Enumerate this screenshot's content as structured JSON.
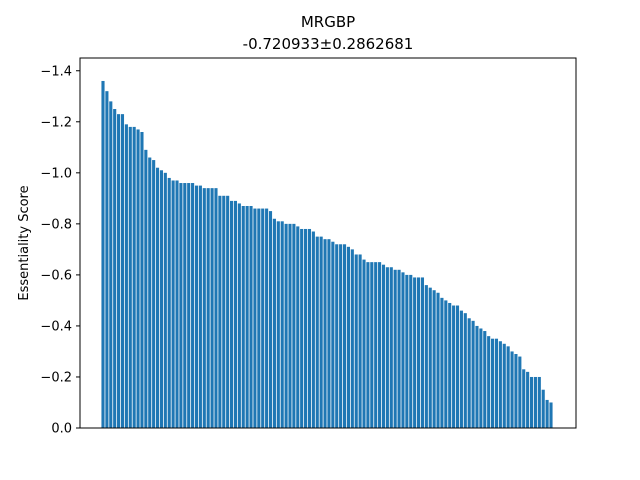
{
  "chart_data": {
    "type": "bar",
    "title": "MRGBP",
    "subtitle": "-0.720933±0.2862681",
    "xlabel": "",
    "ylabel": "Essentiality Score",
    "y_inverted": true,
    "ylim": [
      0,
      -1.45
    ],
    "yticks": [
      0.0,
      -0.2,
      -0.4,
      -0.6,
      -0.8,
      -1.0,
      -1.2,
      -1.4
    ],
    "ytick_labels": [
      "0.0",
      "−0.2",
      "−0.4",
      "−0.6",
      "−0.8",
      "−1.0",
      "−1.2",
      "−1.4"
    ],
    "grid": false,
    "bar_color": "#1f77b4",
    "values": [
      -1.36,
      -1.32,
      -1.28,
      -1.25,
      -1.23,
      -1.23,
      -1.19,
      -1.18,
      -1.18,
      -1.17,
      -1.16,
      -1.09,
      -1.06,
      -1.05,
      -1.02,
      -1.01,
      -1.0,
      -0.98,
      -0.97,
      -0.97,
      -0.96,
      -0.96,
      -0.96,
      -0.96,
      -0.95,
      -0.95,
      -0.94,
      -0.94,
      -0.94,
      -0.94,
      -0.91,
      -0.91,
      -0.91,
      -0.89,
      -0.89,
      -0.88,
      -0.87,
      -0.87,
      -0.87,
      -0.86,
      -0.86,
      -0.86,
      -0.86,
      -0.85,
      -0.82,
      -0.81,
      -0.81,
      -0.8,
      -0.8,
      -0.8,
      -0.79,
      -0.78,
      -0.78,
      -0.78,
      -0.77,
      -0.75,
      -0.75,
      -0.74,
      -0.74,
      -0.73,
      -0.72,
      -0.72,
      -0.72,
      -0.71,
      -0.7,
      -0.68,
      -0.68,
      -0.66,
      -0.65,
      -0.65,
      -0.65,
      -0.65,
      -0.64,
      -0.63,
      -0.63,
      -0.62,
      -0.62,
      -0.61,
      -0.6,
      -0.6,
      -0.59,
      -0.59,
      -0.59,
      -0.56,
      -0.55,
      -0.54,
      -0.53,
      -0.51,
      -0.5,
      -0.49,
      -0.48,
      -0.48,
      -0.46,
      -0.45,
      -0.43,
      -0.42,
      -0.4,
      -0.39,
      -0.38,
      -0.36,
      -0.35,
      -0.35,
      -0.34,
      -0.33,
      -0.32,
      -0.3,
      -0.29,
      -0.28,
      -0.23,
      -0.22,
      -0.2,
      -0.2,
      -0.2,
      -0.15,
      -0.11,
      -0.1
    ]
  }
}
